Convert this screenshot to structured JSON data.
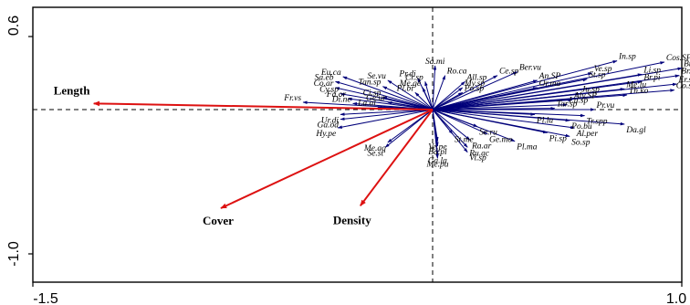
{
  "chart_data": {
    "type": "biplot",
    "xlim": [
      -1.5,
      1.0
    ],
    "ylim": [
      -1.0,
      0.6
    ],
    "x_tick_labels": [
      "-1.5",
      "1.0"
    ],
    "y_tick_labels": [
      "0.6",
      "-1.0"
    ],
    "colors": {
      "environmental_arrows": "#dd1111",
      "species_arrows": "#00007a",
      "frame": "#000000"
    },
    "environmental_variables": [
      {
        "name": "Length",
        "x": -1.36,
        "y": 0.05
      },
      {
        "name": "Cover",
        "x": -0.85,
        "y": -0.81
      },
      {
        "name": "Density",
        "x": -0.29,
        "y": -0.79
      }
    ],
    "species": [
      {
        "name": "Sa.mi",
        "x": 0.01,
        "y": 0.36
      },
      {
        "name": "Ro.ca",
        "x": 0.05,
        "y": 0.28
      },
      {
        "name": "Pr.di",
        "x": -0.06,
        "y": 0.26
      },
      {
        "name": "Cr.sp",
        "x": -0.03,
        "y": 0.23
      },
      {
        "name": "Me.ge",
        "x": -0.04,
        "y": 0.18
      },
      {
        "name": "Pl.bi",
        "x": -0.07,
        "y": 0.14
      },
      {
        "name": "All.sp",
        "x": 0.13,
        "y": 0.23
      },
      {
        "name": "My.sp",
        "x": 0.12,
        "y": 0.18
      },
      {
        "name": "Po.sp",
        "x": 0.12,
        "y": 0.14
      },
      {
        "name": "Ber.vu",
        "x": 0.34,
        "y": 0.31
      },
      {
        "name": "Ce.sp",
        "x": 0.26,
        "y": 0.28
      },
      {
        "name": "An.SP",
        "x": 0.42,
        "y": 0.24
      },
      {
        "name": "Or.ma",
        "x": 0.42,
        "y": 0.18
      },
      {
        "name": "Ve.sp",
        "x": 0.64,
        "y": 0.3
      },
      {
        "name": "St.sp",
        "x": 0.62,
        "y": 0.25
      },
      {
        "name": "In.sp",
        "x": 0.74,
        "y": 0.4
      },
      {
        "name": "Cos.SP",
        "x": 0.93,
        "y": 0.39
      },
      {
        "name": "Br.to",
        "x": 1.0,
        "y": 0.34
      },
      {
        "name": "Br.da",
        "x": 0.99,
        "y": 0.28
      },
      {
        "name": "Li.sp",
        "x": 0.84,
        "y": 0.29
      },
      {
        "name": "Br.pi",
        "x": 0.84,
        "y": 0.23
      },
      {
        "name": "Er.sp",
        "x": 0.98,
        "y": 0.21
      },
      {
        "name": "Co.sp",
        "x": 0.97,
        "y": 0.16
      },
      {
        "name": "Me.lu",
        "x": 0.77,
        "y": 0.17
      },
      {
        "name": "Th.ko",
        "x": 0.78,
        "y": 0.12
      },
      {
        "name": "Ju.sp",
        "x": 0.59,
        "y": 0.13
      },
      {
        "name": "Aly.SP",
        "x": 0.56,
        "y": 0.08
      },
      {
        "name": "Lu.sp",
        "x": 0.54,
        "y": 0.04
      },
      {
        "name": "Tar.sp",
        "x": 0.49,
        "y": 0.01
      },
      {
        "name": "Pr.vu",
        "x": 0.65,
        "y": 0.0
      },
      {
        "name": "Pl.la",
        "x": 0.41,
        "y": -0.04
      },
      {
        "name": "Tr.spp",
        "x": 0.61,
        "y": -0.05
      },
      {
        "name": "Po.bu",
        "x": 0.55,
        "y": -0.09
      },
      {
        "name": "Da.gl",
        "x": 0.77,
        "y": -0.12
      },
      {
        "name": "Al.per",
        "x": 0.57,
        "y": -0.15
      },
      {
        "name": "Pi.sp",
        "x": 0.46,
        "y": -0.19
      },
      {
        "name": "So.sp",
        "x": 0.55,
        "y": -0.22
      },
      {
        "name": "Pl.ma",
        "x": 0.33,
        "y": -0.26
      },
      {
        "name": "Se.ru",
        "x": 0.18,
        "y": -0.14
      },
      {
        "name": "St.me",
        "x": 0.08,
        "y": -0.2
      },
      {
        "name": "Ge.mo",
        "x": 0.22,
        "y": -0.2
      },
      {
        "name": "Ra.ar",
        "x": 0.15,
        "y": -0.25
      },
      {
        "name": "Ru.ac",
        "x": 0.14,
        "y": -0.31
      },
      {
        "name": "Vi.sp",
        "x": 0.14,
        "y": -0.35
      },
      {
        "name": "Ve.pe",
        "x": 0.02,
        "y": -0.26
      },
      {
        "name": "Ba.pl",
        "x": 0.02,
        "y": -0.3
      },
      {
        "name": "Ca.la",
        "x": 0.02,
        "y": -0.37
      },
      {
        "name": "Me.pu",
        "x": 0.02,
        "y": -0.4
      },
      {
        "name": "Me.aq",
        "x": -0.18,
        "y": -0.27
      },
      {
        "name": "Se.st",
        "x": -0.19,
        "y": -0.31
      },
      {
        "name": "Eu.ca",
        "x": -0.36,
        "y": 0.27
      },
      {
        "name": "Sa.eb",
        "x": -0.39,
        "y": 0.23
      },
      {
        "name": "Co.ar",
        "x": -0.39,
        "y": 0.18
      },
      {
        "name": "Cy.sp",
        "x": -0.37,
        "y": 0.13
      },
      {
        "name": "Fa.or",
        "x": -0.34,
        "y": 0.09
      },
      {
        "name": "Di.ne",
        "x": -0.32,
        "y": 0.05
      },
      {
        "name": "Se.vu",
        "x": -0.18,
        "y": 0.24
      },
      {
        "name": "Tan.sp",
        "x": -0.2,
        "y": 0.19
      },
      {
        "name": "Ci.sp",
        "x": -0.2,
        "y": 0.1
      },
      {
        "name": "Ge.ur",
        "x": -0.18,
        "y": 0.06
      },
      {
        "name": "La.al",
        "x": -0.22,
        "y": 0.02
      },
      {
        "name": "Fr.vs",
        "x": -0.52,
        "y": 0.06
      },
      {
        "name": "Ur.di",
        "x": -0.37,
        "y": -0.04
      },
      {
        "name": "Ga.od",
        "x": -0.37,
        "y": -0.08
      },
      {
        "name": "Hy.pe",
        "x": -0.38,
        "y": -0.15
      }
    ]
  }
}
